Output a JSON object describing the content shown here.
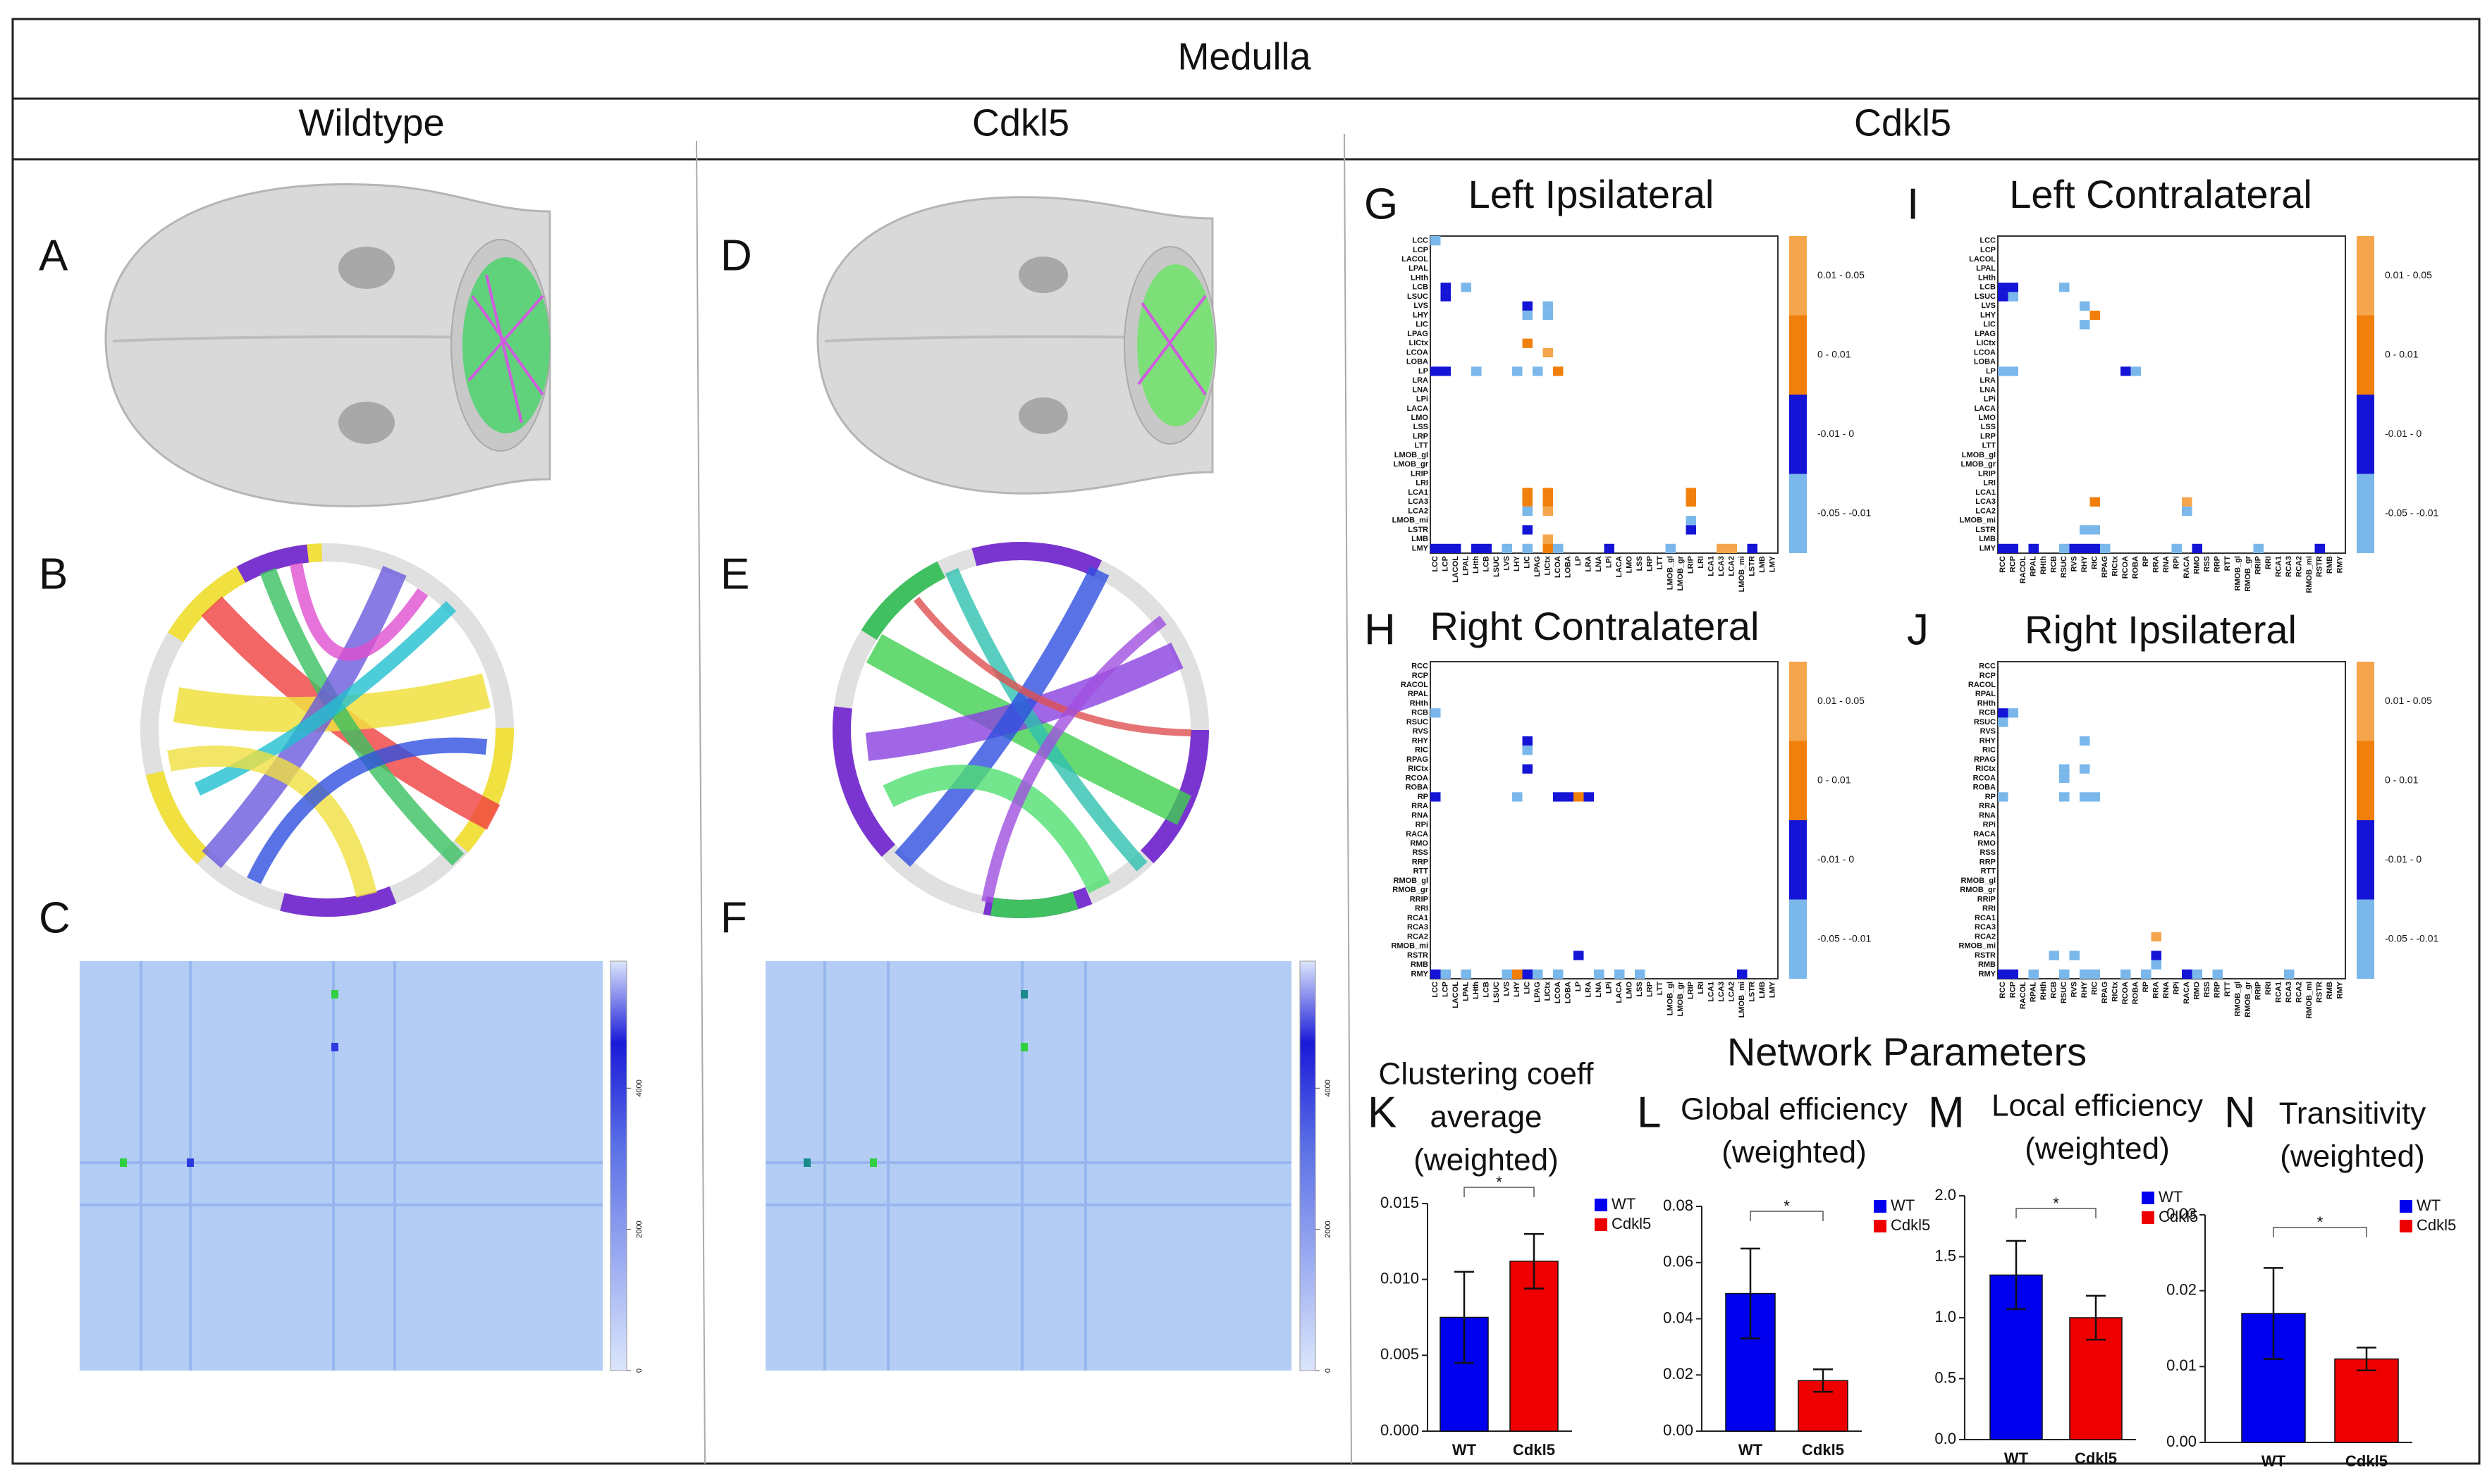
{
  "header": {
    "title": "Medulla",
    "columns": [
      "Wildtype",
      "Cdkl5",
      "Cdkl5"
    ]
  },
  "panel_letters": [
    "A",
    "B",
    "C",
    "D",
    "E",
    "F",
    "G",
    "H",
    "I",
    "J",
    "K",
    "L",
    "M",
    "N"
  ],
  "heatmaps": {
    "colorbar_lim": [
      0,
      5800
    ],
    "colorbar_ticks": [
      0,
      2000,
      4000
    ]
  },
  "section_title": "Network Parameters",
  "matrices": {
    "legend": [
      "0.01 - 0.05",
      "0 - 0.01",
      "-0.01 - 0",
      "-0.05 - -0.01"
    ],
    "colors": [
      "#f5a54c",
      "#f07f0b",
      "#1414d6",
      "#7ab7ea"
    ],
    "panels": [
      {
        "title": "Left Ipsilateral",
        "rows": [
          "LCC",
          "LCP",
          "LACOL",
          "LPAL",
          "LHth",
          "LCB",
          "LSUC",
          "LVS",
          "LHY",
          "LIC",
          "LPAG",
          "LICtx",
          "LCOA",
          "LOBA",
          "LP",
          "LRA",
          "LNA",
          "LPi",
          "LACA",
          "LMO",
          "LSS",
          "LRP",
          "LTT",
          "LMOB_gl",
          "LMOB_gr",
          "LRIP",
          "LRI",
          "LCA1",
          "LCA3",
          "LCA2",
          "LMOB_mi",
          "LSTR",
          "LMB",
          "LMY"
        ],
        "cols": [
          "LCC",
          "LCP",
          "LACOL",
          "LPAL",
          "LHth",
          "LCB",
          "LSUC",
          "LVS",
          "LHY",
          "LIC",
          "LPAG",
          "LICtx",
          "LCOA",
          "LOBA",
          "LP",
          "LRA",
          "LNA",
          "LPi",
          "LACA",
          "LMO",
          "LSS",
          "LRP",
          "LTT",
          "LMOB_gl",
          "LMOB_gr",
          "LRIP",
          "LRI",
          "LCA1",
          "LCA3",
          "LCA2",
          "LMOB_mi",
          "LSTR",
          "LMB",
          "LMY"
        ],
        "cells": [
          [
            0,
            0,
            3
          ],
          [
            5,
            1,
            2
          ],
          [
            5,
            3,
            3
          ],
          [
            6,
            1,
            2
          ],
          [
            7,
            9,
            2
          ],
          [
            7,
            11,
            3
          ],
          [
            8,
            9,
            3
          ],
          [
            8,
            11,
            3
          ],
          [
            11,
            9,
            1
          ],
          [
            12,
            11,
            0
          ],
          [
            14,
            0,
            2
          ],
          [
            14,
            1,
            2
          ],
          [
            14,
            4,
            3
          ],
          [
            14,
            8,
            3
          ],
          [
            14,
            10,
            3
          ],
          [
            14,
            12,
            1
          ],
          [
            27,
            9,
            1
          ],
          [
            27,
            11,
            1
          ],
          [
            27,
            25,
            1
          ],
          [
            28,
            9,
            1
          ],
          [
            28,
            11,
            1
          ],
          [
            28,
            25,
            1
          ],
          [
            29,
            9,
            3
          ],
          [
            29,
            11,
            0
          ],
          [
            30,
            25,
            3
          ],
          [
            31,
            9,
            2
          ],
          [
            31,
            25,
            2
          ],
          [
            32,
            11,
            0
          ],
          [
            33,
            0,
            2
          ],
          [
            33,
            1,
            2
          ],
          [
            33,
            2,
            2
          ],
          [
            33,
            4,
            2
          ],
          [
            33,
            5,
            2
          ],
          [
            33,
            7,
            3
          ],
          [
            33,
            9,
            3
          ],
          [
            33,
            11,
            1
          ],
          [
            33,
            12,
            3
          ],
          [
            33,
            17,
            2
          ],
          [
            33,
            23,
            3
          ],
          [
            33,
            28,
            0
          ],
          [
            33,
            29,
            0
          ],
          [
            33,
            31,
            2
          ]
        ]
      },
      {
        "title": "Left Contralateral",
        "rows": [
          "LCC",
          "LCP",
          "LACOL",
          "LPAL",
          "LHth",
          "LCB",
          "LSUC",
          "LVS",
          "LHY",
          "LIC",
          "LPAG",
          "LICtx",
          "LCOA",
          "LOBA",
          "LP",
          "LRA",
          "LNA",
          "LPi",
          "LACA",
          "LMO",
          "LSS",
          "LRP",
          "LTT",
          "LMOB_gl",
          "LMOB_gr",
          "LRIP",
          "LRI",
          "LCA1",
          "LCA3",
          "LCA2",
          "LMOB_mi",
          "LSTR",
          "LMB",
          "LMY"
        ],
        "cols": [
          "RCC",
          "RCP",
          "RACOL",
          "RPAL",
          "RHth",
          "RCB",
          "RSUC",
          "RVS",
          "RHY",
          "RIC",
          "RPAG",
          "RICtx",
          "RCOA",
          "ROBA",
          "RP",
          "RRA",
          "RNA",
          "RPi",
          "RACA",
          "RMO",
          "RSS",
          "RRP",
          "RTT",
          "RMOB_gl",
          "RMOB_gr",
          "RRIP",
          "RRI",
          "RCA1",
          "RCA3",
          "RCA2",
          "RMOB_mi",
          "RSTR",
          "RMB",
          "RMY"
        ],
        "cells": [
          [
            5,
            0,
            2
          ],
          [
            5,
            1,
            2
          ],
          [
            5,
            6,
            3
          ],
          [
            6,
            0,
            2
          ],
          [
            6,
            1,
            3
          ],
          [
            7,
            8,
            3
          ],
          [
            8,
            9,
            1
          ],
          [
            9,
            8,
            3
          ],
          [
            14,
            0,
            3
          ],
          [
            14,
            1,
            3
          ],
          [
            14,
            12,
            2
          ],
          [
            14,
            13,
            3
          ],
          [
            28,
            9,
            1
          ],
          [
            28,
            18,
            0
          ],
          [
            29,
            18,
            3
          ],
          [
            31,
            8,
            3
          ],
          [
            31,
            9,
            3
          ],
          [
            33,
            0,
            2
          ],
          [
            33,
            1,
            2
          ],
          [
            33,
            3,
            2
          ],
          [
            33,
            6,
            3
          ],
          [
            33,
            7,
            2
          ],
          [
            33,
            8,
            2
          ],
          [
            33,
            9,
            2
          ],
          [
            33,
            10,
            3
          ],
          [
            33,
            17,
            3
          ],
          [
            33,
            19,
            2
          ],
          [
            33,
            25,
            3
          ],
          [
            33,
            31,
            2
          ]
        ]
      },
      {
        "title": "Right Contralateral",
        "rows": [
          "RCC",
          "RCP",
          "RACOL",
          "RPAL",
          "RHth",
          "RCB",
          "RSUC",
          "RVS",
          "RHY",
          "RIC",
          "RPAG",
          "RICtx",
          "RCOA",
          "ROBA",
          "RP",
          "RRA",
          "RNA",
          "RPi",
          "RACA",
          "RMO",
          "RSS",
          "RRP",
          "RTT",
          "RMOB_gl",
          "RMOB_gr",
          "RRIP",
          "RRI",
          "RCA1",
          "RCA3",
          "RCA2",
          "RMOB_mi",
          "RSTR",
          "RMB",
          "RMY"
        ],
        "cols": [
          "LCC",
          "LCP",
          "LACOL",
          "LPAL",
          "LHth",
          "LCB",
          "LSUC",
          "LVS",
          "LHY",
          "LIC",
          "LPAG",
          "LICtx",
          "LCOA",
          "LOBA",
          "LP",
          "LRA",
          "LNA",
          "LPi",
          "LACA",
          "LMO",
          "LSS",
          "LRP",
          "LTT",
          "LMOB_gl",
          "LMOB_gr",
          "LRIP",
          "LRI",
          "LCA1",
          "LCA3",
          "LCA2",
          "LMOB_mi",
          "LSTR",
          "LMB",
          "LMY"
        ],
        "cells": [
          [
            5,
            0,
            3
          ],
          [
            8,
            9,
            2
          ],
          [
            9,
            9,
            3
          ],
          [
            11,
            9,
            2
          ],
          [
            14,
            0,
            2
          ],
          [
            14,
            8,
            3
          ],
          [
            14,
            12,
            2
          ],
          [
            14,
            13,
            2
          ],
          [
            14,
            14,
            1
          ],
          [
            14,
            15,
            2
          ],
          [
            31,
            14,
            2
          ],
          [
            33,
            0,
            2
          ],
          [
            33,
            1,
            3
          ],
          [
            33,
            3,
            3
          ],
          [
            33,
            7,
            3
          ],
          [
            33,
            8,
            1
          ],
          [
            33,
            9,
            2
          ],
          [
            33,
            10,
            3
          ],
          [
            33,
            12,
            3
          ],
          [
            33,
            16,
            3
          ],
          [
            33,
            18,
            3
          ],
          [
            33,
            20,
            3
          ],
          [
            33,
            30,
            2
          ]
        ]
      },
      {
        "title": "Right Ipsilateral",
        "rows": [
          "RCC",
          "RCP",
          "RACOL",
          "RPAL",
          "RHth",
          "RCB",
          "RSUC",
          "RVS",
          "RHY",
          "RIC",
          "RPAG",
          "RICtx",
          "RCOA",
          "ROBA",
          "RP",
          "RRA",
          "RNA",
          "RPi",
          "RACA",
          "RMO",
          "RSS",
          "RRP",
          "RTT",
          "RMOB_gl",
          "RMOB_gr",
          "RRIP",
          "RRI",
          "RCA1",
          "RCA3",
          "RCA2",
          "RMOB_mi",
          "RSTR",
          "RMB",
          "RMY"
        ],
        "cols": [
          "RCC",
          "RCP",
          "RACOL",
          "RPAL",
          "RHth",
          "RCB",
          "RSUC",
          "RVS",
          "RHY",
          "RIC",
          "RPAG",
          "RICtx",
          "RCOA",
          "ROBA",
          "RP",
          "RRA",
          "RNA",
          "RPi",
          "RACA",
          "RMO",
          "RSS",
          "RRP",
          "RTT",
          "RMOB_gl",
          "RMOB_gr",
          "RRIP",
          "RRI",
          "RCA1",
          "RCA3",
          "RCA2",
          "RMOB_mi",
          "RSTR",
          "RMB",
          "RMY"
        ],
        "cells": [
          [
            5,
            0,
            2
          ],
          [
            5,
            1,
            3
          ],
          [
            6,
            0,
            3
          ],
          [
            8,
            8,
            3
          ],
          [
            11,
            6,
            3
          ],
          [
            11,
            8,
            3
          ],
          [
            12,
            6,
            3
          ],
          [
            14,
            0,
            3
          ],
          [
            14,
            6,
            3
          ],
          [
            14,
            8,
            3
          ],
          [
            14,
            9,
            3
          ],
          [
            29,
            15,
            0
          ],
          [
            31,
            5,
            3
          ],
          [
            31,
            7,
            3
          ],
          [
            31,
            15,
            2
          ],
          [
            32,
            15,
            3
          ],
          [
            33,
            0,
            2
          ],
          [
            33,
            1,
            2
          ],
          [
            33,
            3,
            3
          ],
          [
            33,
            6,
            3
          ],
          [
            33,
            8,
            3
          ],
          [
            33,
            9,
            3
          ],
          [
            33,
            12,
            3
          ],
          [
            33,
            14,
            3
          ],
          [
            33,
            18,
            2
          ],
          [
            33,
            19,
            3
          ],
          [
            33,
            21,
            3
          ],
          [
            33,
            28,
            3
          ]
        ]
      }
    ]
  },
  "chart_data": [
    {
      "type": "bar",
      "title": [
        "Clustering coeff",
        "average",
        "(weighted)"
      ],
      "categories": [
        "WT",
        "Cdkl5"
      ],
      "values": [
        0.0075,
        0.0112
      ],
      "errors": [
        0.003,
        0.0018
      ],
      "colors": [
        "#0000ee",
        "#ee0000"
      ],
      "ylim": [
        0,
        0.015
      ],
      "yticks": [
        {
          "value": 0,
          "label": "0.000"
        },
        0.005,
        {
          "value": 0.01,
          "label": "0.010"
        },
        0.015
      ],
      "annotation": "*"
    },
    {
      "type": "bar",
      "title": [
        "Global efficiency",
        "(weighted)"
      ],
      "categories": [
        "WT",
        "Cdkl5"
      ],
      "values": [
        0.049,
        0.018
      ],
      "errors": [
        0.016,
        0.004
      ],
      "colors": [
        "#0000ee",
        "#ee0000"
      ],
      "ylim": [
        0,
        0.08
      ],
      "yticks": [
        {
          "value": 0,
          "label": "0.00"
        },
        0.02,
        0.04,
        0.06,
        0.08
      ],
      "annotation": "*"
    },
    {
      "type": "bar",
      "title": [
        "Local efficiency",
        "(weighted)"
      ],
      "categories": [
        "WT",
        "Cdkl5"
      ],
      "values": [
        1.35,
        1.0
      ],
      "errors": [
        0.28,
        0.18
      ],
      "colors": [
        "#0000ee",
        "#ee0000"
      ],
      "ylim": [
        0,
        2
      ],
      "yticks": [
        {
          "value": 0,
          "label": "0.0"
        },
        0.5,
        {
          "value": 1,
          "label": "1.0"
        },
        1.5,
        {
          "value": 2,
          "label": "2.0"
        }
      ],
      "annotation": "*"
    },
    {
      "type": "bar",
      "title": [
        "Transitivity",
        "(weighted)"
      ],
      "categories": [
        "WT",
        "Cdkl5"
      ],
      "values": [
        0.017,
        0.011
      ],
      "errors": [
        0.006,
        0.0015
      ],
      "colors": [
        "#0000ee",
        "#ee0000"
      ],
      "ylim": [
        0,
        0.03
      ],
      "yticks": [
        {
          "value": 0,
          "label": "0.00"
        },
        0.01,
        0.02,
        0.03
      ],
      "annotation": "*"
    }
  ]
}
